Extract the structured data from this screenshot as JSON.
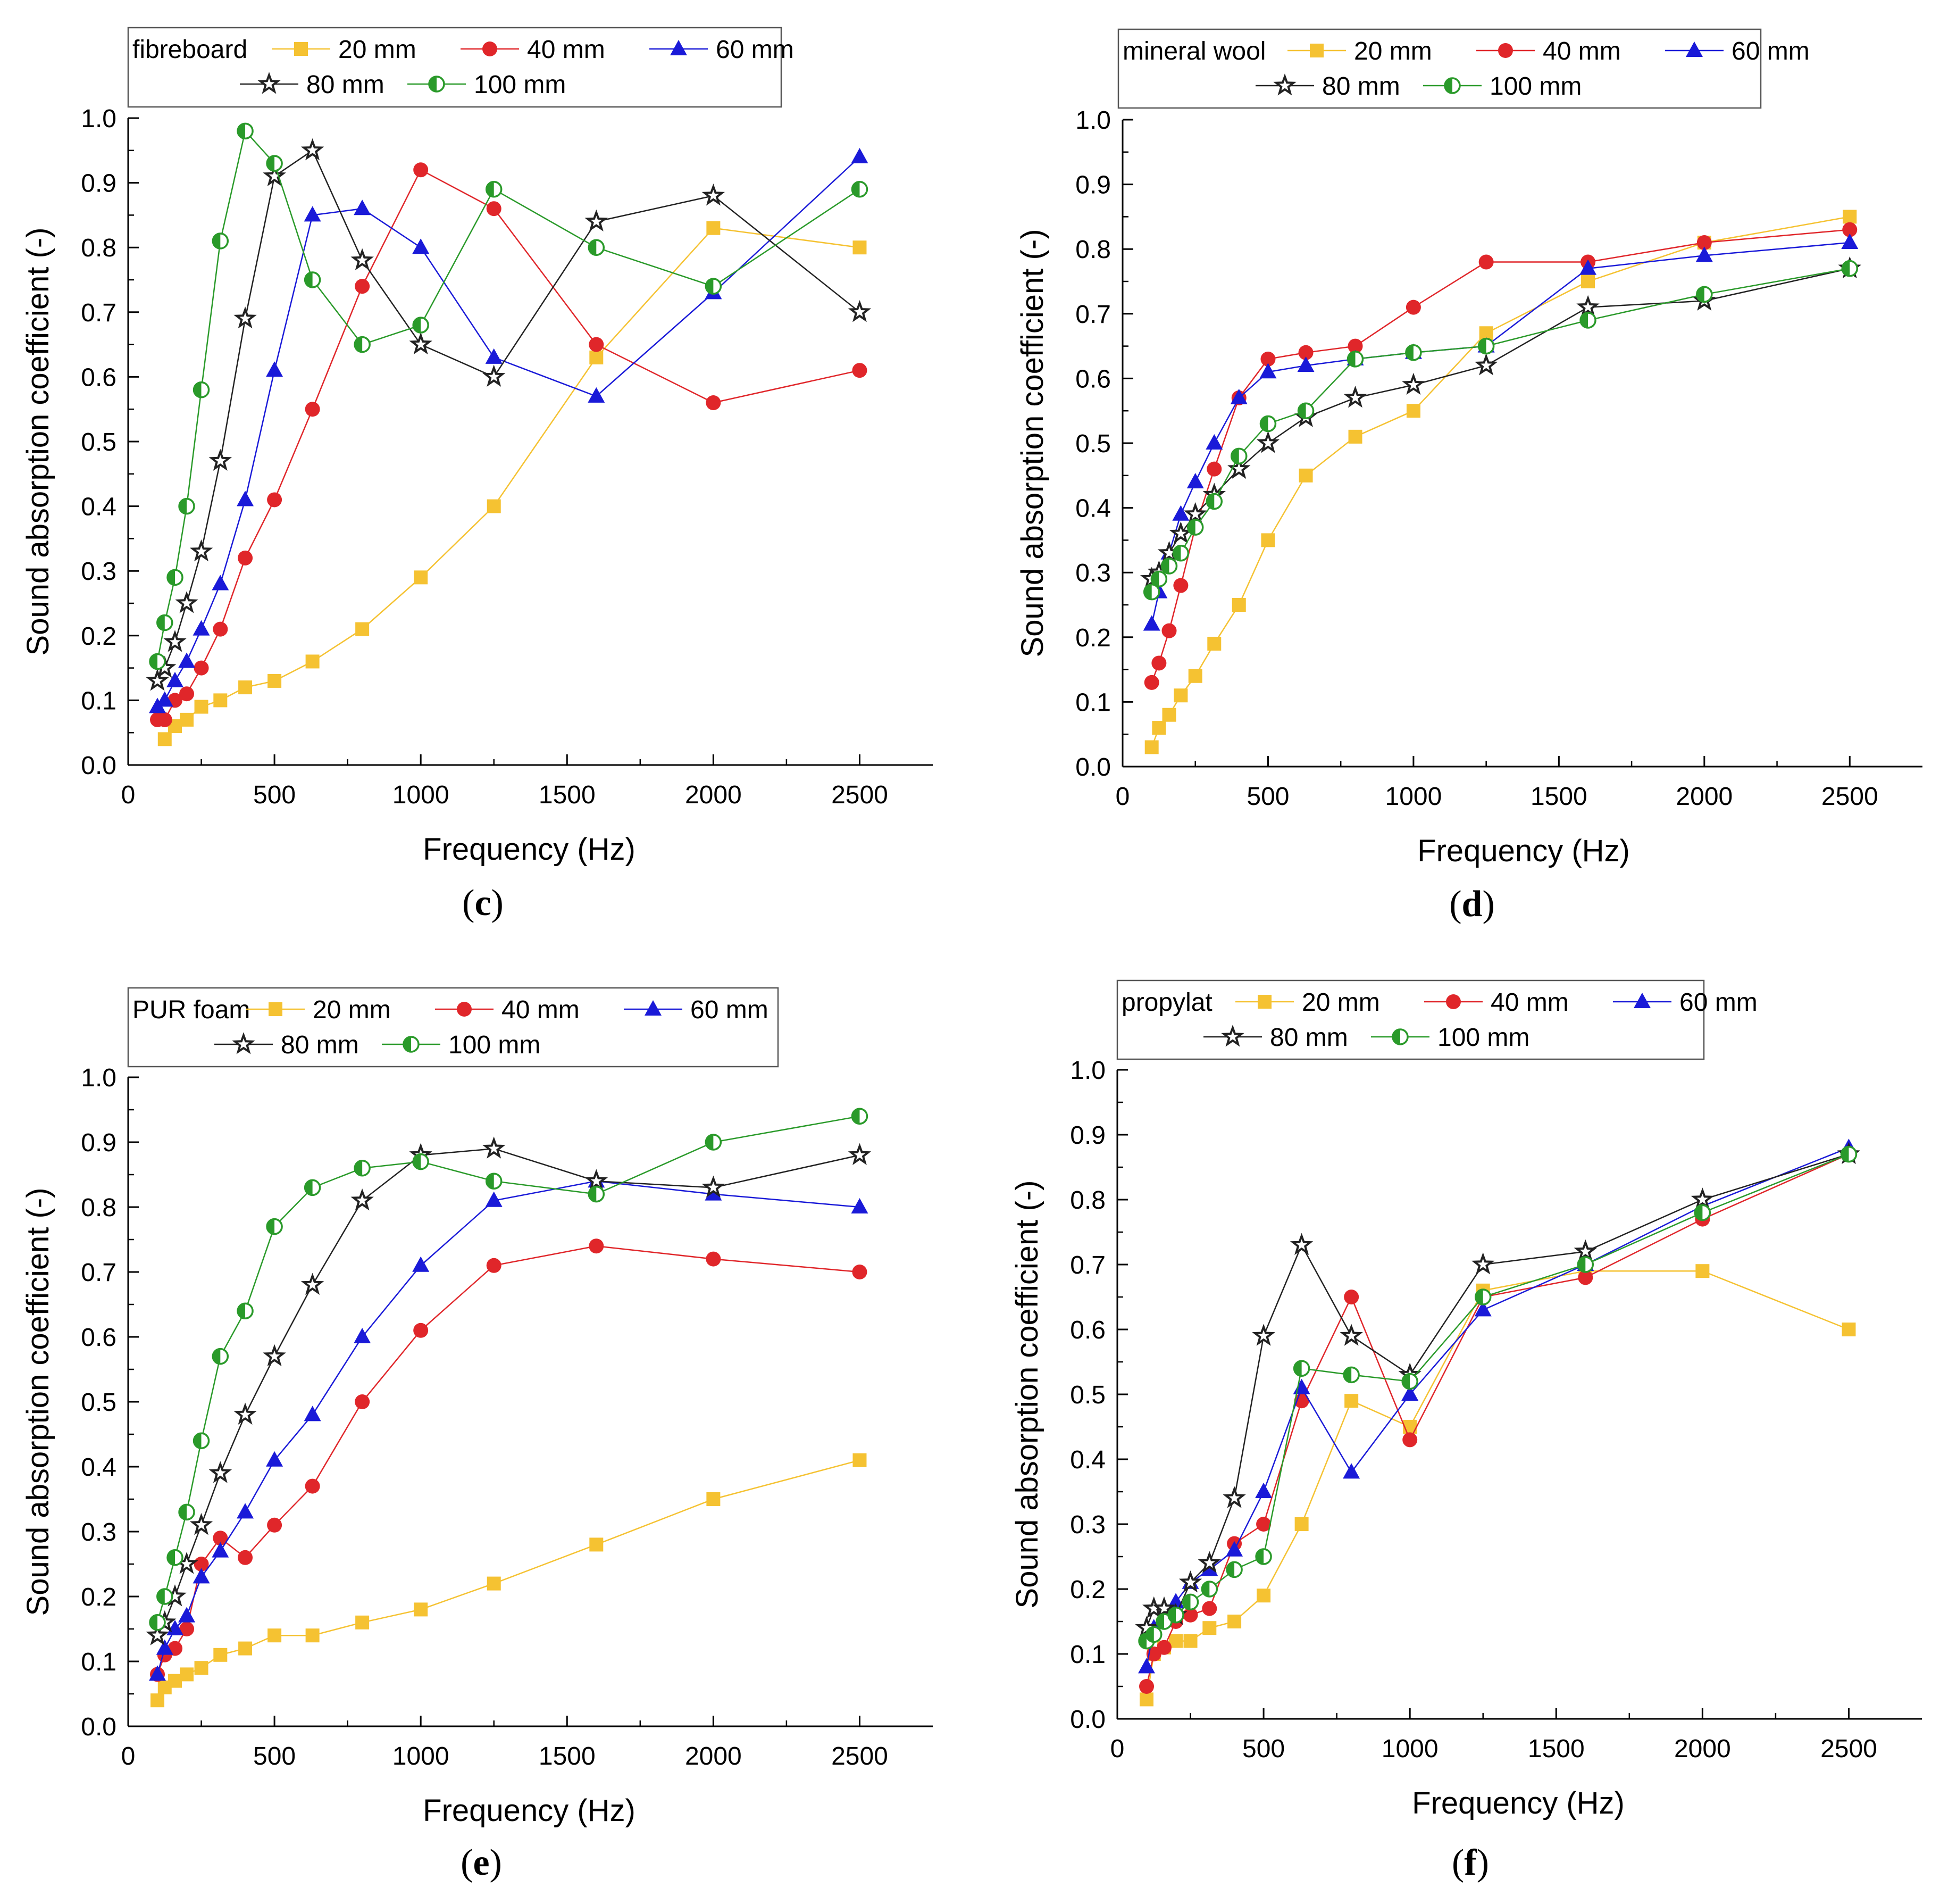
{
  "colors": {
    "20 mm": "#f5c232",
    "40 mm": "#e0262a",
    "60 mm": "#1a1ad8",
    "80 mm": "#222222",
    "100 mm": "#2a9a2a"
  },
  "chart_data": [
    {
      "type": "line",
      "panel": "c",
      "legend_title": "fibreboard",
      "xlabel": "Frequency (Hz)",
      "ylabel": "Sound absorption coefficient (-)",
      "xlim": [
        0,
        2750
      ],
      "ylim": [
        0,
        1.0
      ],
      "xticks": [
        "0",
        "500",
        "1000",
        "1500",
        "2000",
        "2500"
      ],
      "yticks": [
        "0.0",
        "0.1",
        "0.2",
        "0.3",
        "0.4",
        "0.5",
        "0.6",
        "0.7",
        "0.8",
        "0.9",
        "1.0"
      ],
      "x": [
        100,
        125,
        160,
        200,
        250,
        315,
        400,
        500,
        630,
        800,
        1000,
        1250,
        1600,
        2000,
        2500
      ],
      "series": [
        {
          "name": "20 mm",
          "marker": "square",
          "values": [
            null,
            0.04,
            0.06,
            0.07,
            0.09,
            0.1,
            0.12,
            0.13,
            0.16,
            0.21,
            0.29,
            0.4,
            0.63,
            0.83,
            0.8
          ]
        },
        {
          "name": "40 mm",
          "marker": "circle",
          "values": [
            0.07,
            0.07,
            0.1,
            0.11,
            0.15,
            0.21,
            0.32,
            0.41,
            0.55,
            0.74,
            0.92,
            0.86,
            0.65,
            0.56,
            0.61
          ]
        },
        {
          "name": "60 mm",
          "marker": "triangle",
          "values": [
            0.09,
            0.1,
            0.13,
            0.16,
            0.21,
            0.28,
            0.41,
            0.61,
            0.85,
            0.86,
            0.8,
            0.63,
            0.57,
            0.73,
            0.94
          ]
        },
        {
          "name": "80 mm",
          "marker": "star",
          "values": [
            0.13,
            0.15,
            0.19,
            0.25,
            0.33,
            0.47,
            0.69,
            0.91,
            0.95,
            0.78,
            0.65,
            0.6,
            0.84,
            0.88,
            0.7
          ]
        },
        {
          "name": "100 mm",
          "marker": "halfcircle",
          "values": [
            0.16,
            0.22,
            0.29,
            0.4,
            0.58,
            0.81,
            0.98,
            0.93,
            0.75,
            0.65,
            0.68,
            0.89,
            0.8,
            0.74,
            0.89
          ]
        }
      ]
    },
    {
      "type": "line",
      "panel": "d",
      "legend_title": "mineral wool",
      "xlabel": "Frequency (Hz)",
      "ylabel": "Sound absorption coefficient (-)",
      "xlim": [
        0,
        2750
      ],
      "ylim": [
        0,
        1.0
      ],
      "xticks": [
        "0",
        "500",
        "1000",
        "1500",
        "2000",
        "2500"
      ],
      "yticks": [
        "0.0",
        "0.1",
        "0.2",
        "0.3",
        "0.4",
        "0.5",
        "0.6",
        "0.7",
        "0.8",
        "0.9",
        "1.0"
      ],
      "x": [
        100,
        125,
        160,
        200,
        250,
        315,
        400,
        500,
        630,
        800,
        1000,
        1250,
        1600,
        2000,
        2500
      ],
      "series": [
        {
          "name": "20 mm",
          "marker": "square",
          "values": [
            0.03,
            0.06,
            0.08,
            0.11,
            0.14,
            0.19,
            0.25,
            0.35,
            0.45,
            0.51,
            0.55,
            0.67,
            0.75,
            0.81,
            0.85
          ]
        },
        {
          "name": "40 mm",
          "marker": "circle",
          "values": [
            0.13,
            0.16,
            0.21,
            0.28,
            0.37,
            0.46,
            0.57,
            0.63,
            0.64,
            0.65,
            0.71,
            0.78,
            0.78,
            0.81,
            0.83
          ]
        },
        {
          "name": "60 mm",
          "marker": "triangle",
          "values": [
            0.22,
            0.27,
            0.33,
            0.39,
            0.44,
            0.5,
            0.57,
            0.61,
            0.62,
            0.63,
            0.64,
            0.65,
            0.77,
            0.79,
            0.81
          ]
        },
        {
          "name": "80 mm",
          "marker": "star",
          "values": [
            0.29,
            0.3,
            0.33,
            0.36,
            0.39,
            0.42,
            0.46,
            0.5,
            0.54,
            0.57,
            0.59,
            0.62,
            0.71,
            0.72,
            0.77
          ]
        },
        {
          "name": "100 mm",
          "marker": "halfcircle",
          "values": [
            0.27,
            0.29,
            0.31,
            0.33,
            0.37,
            0.41,
            0.48,
            0.53,
            0.55,
            0.63,
            0.64,
            0.65,
            0.69,
            0.73,
            0.77
          ]
        }
      ]
    },
    {
      "type": "line",
      "panel": "e",
      "legend_title": "PUR foam",
      "xlabel": "Frequency (Hz)",
      "ylabel": "Sound absorption coefficient (-)",
      "xlim": [
        0,
        2750
      ],
      "ylim": [
        0,
        1.0
      ],
      "xticks": [
        "0",
        "500",
        "1000",
        "1500",
        "2000",
        "2500"
      ],
      "yticks": [
        "0.0",
        "0.1",
        "0.2",
        "0.3",
        "0.4",
        "0.5",
        "0.6",
        "0.7",
        "0.8",
        "0.9",
        "1.0"
      ],
      "x": [
        100,
        125,
        160,
        200,
        250,
        315,
        400,
        500,
        630,
        800,
        1000,
        1250,
        1600,
        2000,
        2500
      ],
      "series": [
        {
          "name": "20 mm",
          "marker": "square",
          "values": [
            0.04,
            0.06,
            0.07,
            0.08,
            0.09,
            0.11,
            0.12,
            0.14,
            0.14,
            0.16,
            0.18,
            0.22,
            0.28,
            0.35,
            0.41
          ]
        },
        {
          "name": "40 mm",
          "marker": "circle",
          "values": [
            0.08,
            0.11,
            0.12,
            0.15,
            0.25,
            0.29,
            0.26,
            0.31,
            0.37,
            0.5,
            0.61,
            0.71,
            0.74,
            0.72,
            0.7
          ]
        },
        {
          "name": "60 mm",
          "marker": "triangle",
          "values": [
            0.08,
            0.12,
            0.15,
            0.17,
            0.23,
            0.27,
            0.33,
            0.41,
            0.48,
            0.6,
            0.71,
            0.81,
            0.84,
            0.82,
            0.8
          ]
        },
        {
          "name": "80 mm",
          "marker": "star",
          "values": [
            0.14,
            0.16,
            0.2,
            0.25,
            0.31,
            0.39,
            0.48,
            0.57,
            0.68,
            0.81,
            0.88,
            0.89,
            0.84,
            0.83,
            0.88
          ]
        },
        {
          "name": "100 mm",
          "marker": "halfcircle",
          "values": [
            0.16,
            0.2,
            0.26,
            0.33,
            0.44,
            0.57,
            0.64,
            0.77,
            0.83,
            0.86,
            0.87,
            0.84,
            0.82,
            0.9,
            0.94
          ]
        }
      ]
    },
    {
      "type": "line",
      "panel": "f",
      "legend_title": "propylat",
      "xlabel": "Frequency (Hz)",
      "ylabel": "Sound absorption coefficient (-)",
      "xlim": [
        0,
        2750
      ],
      "ylim": [
        0,
        1.0
      ],
      "xticks": [
        "0",
        "500",
        "1000",
        "1500",
        "2000",
        "2500"
      ],
      "yticks": [
        "0.0",
        "0.1",
        "0.2",
        "0.3",
        "0.4",
        "0.5",
        "0.6",
        "0.7",
        "0.8",
        "0.9",
        "1.0"
      ],
      "x": [
        100,
        125,
        160,
        200,
        250,
        315,
        400,
        500,
        630,
        800,
        1000,
        1250,
        1600,
        2000,
        2500
      ],
      "series": [
        {
          "name": "20 mm",
          "marker": "square",
          "values": [
            0.03,
            0.1,
            0.11,
            0.12,
            0.12,
            0.14,
            0.15,
            0.19,
            0.3,
            0.49,
            0.45,
            0.66,
            0.69,
            0.69,
            0.6
          ]
        },
        {
          "name": "40 mm",
          "marker": "circle",
          "values": [
            0.05,
            0.1,
            0.11,
            0.15,
            0.16,
            0.17,
            0.27,
            0.3,
            0.49,
            0.65,
            0.43,
            0.65,
            0.68,
            0.77,
            0.87
          ]
        },
        {
          "name": "60 mm",
          "marker": "triangle",
          "values": [
            0.08,
            0.14,
            0.16,
            0.18,
            0.21,
            0.23,
            0.26,
            0.35,
            0.51,
            0.38,
            0.5,
            0.63,
            0.7,
            0.79,
            0.88
          ]
        },
        {
          "name": "80 mm",
          "marker": "star",
          "values": [
            0.14,
            0.17,
            0.17,
            0.16,
            0.21,
            0.24,
            0.34,
            0.59,
            0.73,
            0.59,
            0.53,
            0.7,
            0.72,
            0.8,
            0.87
          ]
        },
        {
          "name": "100 mm",
          "marker": "halfcircle",
          "values": [
            0.12,
            0.13,
            0.15,
            0.16,
            0.18,
            0.2,
            0.23,
            0.25,
            0.54,
            0.53,
            0.52,
            0.65,
            0.7,
            0.78,
            0.87
          ]
        }
      ]
    }
  ]
}
